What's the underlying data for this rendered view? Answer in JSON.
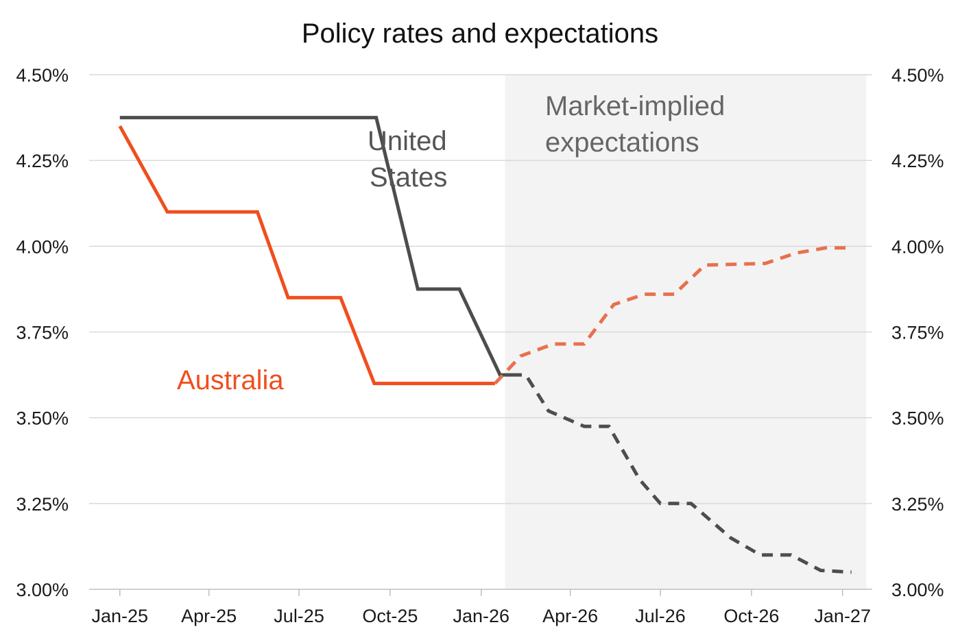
{
  "chart_data": {
    "type": "line",
    "title": "Policy rates and expectations",
    "xlabel": "",
    "ylabel": "",
    "x_tick_labels": [
      "Jan-25",
      "Apr-25",
      "Jul-25",
      "Oct-25",
      "Jan-26",
      "Apr-26",
      "Jul-26",
      "Oct-26",
      "Jan-27"
    ],
    "y_tick_values": [
      3.0,
      3.25,
      3.5,
      3.75,
      4.0,
      4.25,
      4.5
    ],
    "y_tick_labels": [
      "3.00%",
      "3.25%",
      "3.50%",
      "3.75%",
      "4.00%",
      "4.25%",
      "4.50%"
    ],
    "ylim": [
      3.0,
      4.5
    ],
    "xlim": [
      "2024-12-01",
      "2027-01-31"
    ],
    "grid": "horizontal",
    "shaded_region": {
      "from": "2026-01-25",
      "to": "2027-01-25",
      "label_lines": [
        "Market-implied",
        "expectations"
      ],
      "color": "#f3f3f3"
    },
    "series": [
      {
        "name": "United States",
        "label_lines": [
          "United",
          "States"
        ],
        "color": "#4d4d4d",
        "label_color": "#555555",
        "segments": [
          {
            "style": "solid",
            "points": [
              [
                "2025-01-01",
                4.375
              ],
              [
                "2025-09-17",
                4.375
              ],
              [
                "2025-10-29",
                3.875
              ],
              [
                "2025-12-10",
                3.875
              ],
              [
                "2026-01-20",
                3.625
              ],
              [
                "2026-01-31",
                3.625
              ]
            ]
          },
          {
            "style": "dashed",
            "points": [
              [
                "2026-01-31",
                3.625
              ],
              [
                "2026-02-15",
                3.625
              ],
              [
                "2026-03-10",
                3.52
              ],
              [
                "2026-04-15",
                3.475
              ],
              [
                "2026-05-10",
                3.475
              ],
              [
                "2026-06-10",
                3.32
              ],
              [
                "2026-07-01",
                3.25
              ],
              [
                "2026-08-01",
                3.25
              ],
              [
                "2026-09-10",
                3.15
              ],
              [
                "2026-10-10",
                3.1
              ],
              [
                "2026-11-10",
                3.1
              ],
              [
                "2026-12-10",
                3.055
              ],
              [
                "2027-01-10",
                3.05
              ]
            ]
          }
        ]
      },
      {
        "name": "Australia",
        "label_lines": [
          "Australia"
        ],
        "color": "#f04e1f",
        "dashed_color": "#e8704e",
        "label_color": "#f04e1f",
        "segments": [
          {
            "style": "solid",
            "points": [
              [
                "2025-01-01",
                4.35
              ],
              [
                "2025-02-18",
                4.1
              ],
              [
                "2025-05-20",
                4.1
              ],
              [
                "2025-06-20",
                3.85
              ],
              [
                "2025-08-12",
                3.85
              ],
              [
                "2025-09-15",
                3.6
              ],
              [
                "2026-01-15",
                3.6
              ]
            ]
          },
          {
            "style": "dashed",
            "points": [
              [
                "2026-01-15",
                3.6
              ],
              [
                "2026-02-10",
                3.68
              ],
              [
                "2026-03-15",
                3.715
              ],
              [
                "2026-04-15",
                3.715
              ],
              [
                "2026-05-15",
                3.83
              ],
              [
                "2026-06-15",
                3.86
              ],
              [
                "2026-07-15",
                3.86
              ],
              [
                "2026-08-15",
                3.945
              ],
              [
                "2026-10-15",
                3.95
              ],
              [
                "2026-11-15",
                3.98
              ],
              [
                "2026-12-15",
                3.995
              ],
              [
                "2027-01-10",
                3.995
              ]
            ]
          }
        ]
      }
    ]
  }
}
